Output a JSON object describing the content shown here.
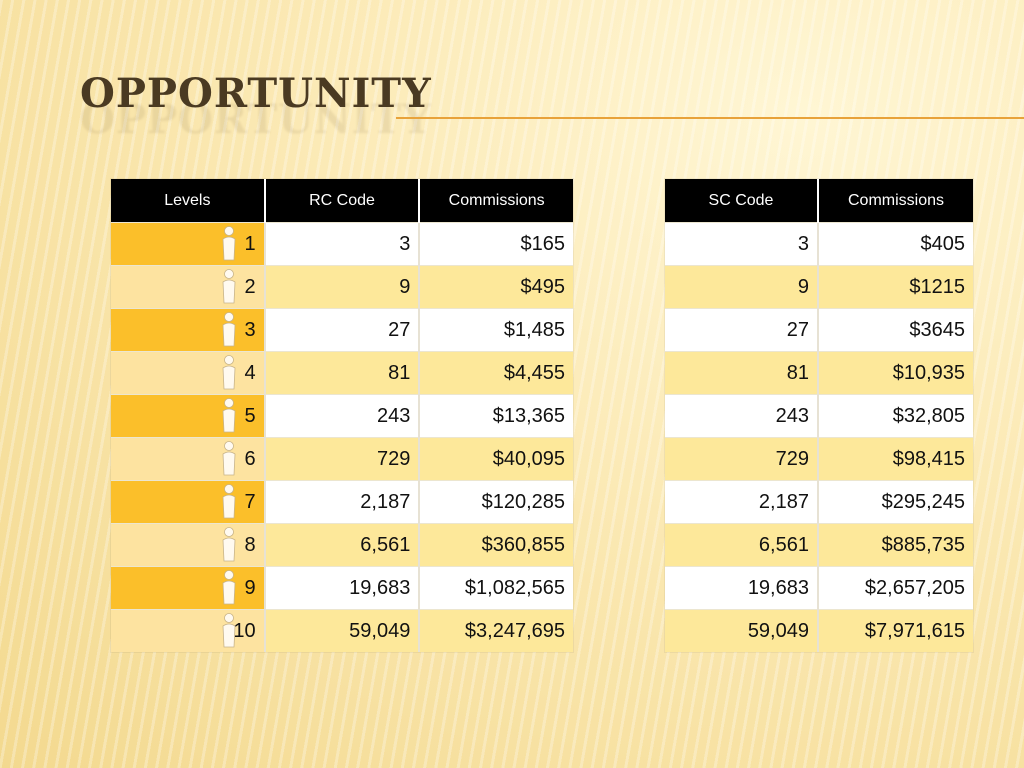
{
  "title": "OPPORTUNITY",
  "colors": {
    "header_bg": "#000000",
    "level_odd": "#fbbf2a",
    "level_even": "#fde3a0",
    "row_even": "#fde89a",
    "row_odd": "#ffffff",
    "rule": "#e8a23a"
  },
  "icon": "person-icon",
  "left_table": {
    "headers": [
      "Levels",
      "RC Code",
      "Commissions"
    ],
    "rows": [
      {
        "level": "1",
        "code": "3",
        "commission": "$165"
      },
      {
        "level": "2",
        "code": "9",
        "commission": "$495"
      },
      {
        "level": "3",
        "code": "27",
        "commission": "$1,485"
      },
      {
        "level": "4",
        "code": "81",
        "commission": "$4,455"
      },
      {
        "level": "5",
        "code": "243",
        "commission": "$13,365"
      },
      {
        "level": "6",
        "code": "729",
        "commission": "$40,095"
      },
      {
        "level": "7",
        "code": "2,187",
        "commission": "$120,285"
      },
      {
        "level": "8",
        "code": "6,561",
        "commission": "$360,855"
      },
      {
        "level": "9",
        "code": "19,683",
        "commission": "$1,082,565"
      },
      {
        "level": "10",
        "code": "59,049",
        "commission": "$3,247,695"
      }
    ]
  },
  "right_table": {
    "headers": [
      "SC Code",
      "Commissions"
    ],
    "rows": [
      {
        "code": "3",
        "commission": "$405"
      },
      {
        "code": "9",
        "commission": "$1215"
      },
      {
        "code": "27",
        "commission": "$3645"
      },
      {
        "code": "81",
        "commission": "$10,935"
      },
      {
        "code": "243",
        "commission": "$32,805"
      },
      {
        "code": "729",
        "commission": "$98,415"
      },
      {
        "code": "2,187",
        "commission": "$295,245"
      },
      {
        "code": "6,561",
        "commission": "$885,735"
      },
      {
        "code": "19,683",
        "commission": "$2,657,205"
      },
      {
        "code": "59,049",
        "commission": "$7,971,615"
      }
    ]
  }
}
